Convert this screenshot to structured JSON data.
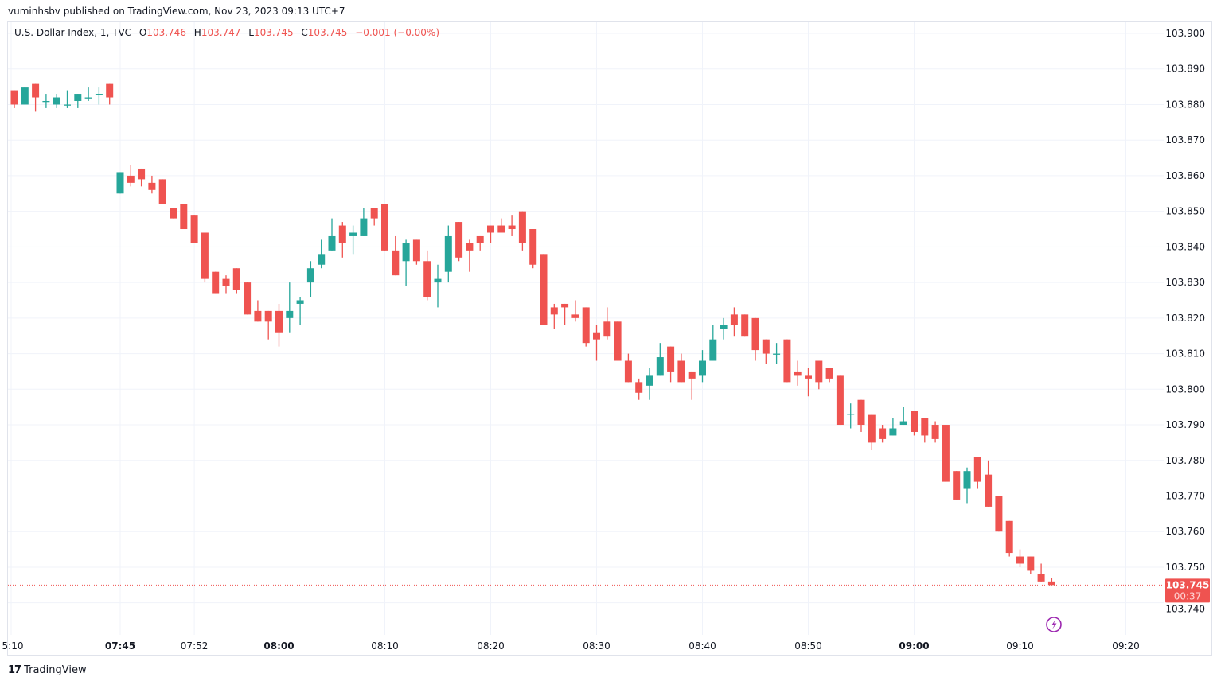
{
  "publisher_line": "vuminhsbv published on TradingView.com, Nov 23, 2023 09:13 UTC+7",
  "legend": {
    "symbol": "U.S. Dollar Index, 1, TVC",
    "o_label": "O",
    "o": "103.746",
    "h_label": "H",
    "h": "103.747",
    "l_label": "L",
    "l": "103.745",
    "c_label": "C",
    "c": "103.745",
    "change": "−0.001 (−0.00%)"
  },
  "last_price": {
    "price": "103.745",
    "countdown": "00:37"
  },
  "footer": {
    "brand": "TradingView",
    "logo": "17"
  },
  "colors": {
    "up": "#26a69a",
    "down": "#ef5350",
    "grid": "#f0f3fa",
    "lightning": "#9c27b0"
  },
  "chart_data": {
    "type": "candlestick",
    "title": "U.S. Dollar Index, 1, TVC",
    "interval_minutes": 1,
    "start_time": "07:35",
    "ylim": [
      103.74,
      103.9
    ],
    "y_ticks": [
      "103.900",
      "103.890",
      "103.880",
      "103.870",
      "103.860",
      "103.850",
      "103.840",
      "103.830",
      "103.820",
      "103.810",
      "103.800",
      "103.790",
      "103.780",
      "103.770",
      "103.760",
      "103.750",
      "103.740"
    ],
    "x_ticks": [
      {
        "label": "5:10",
        "minute": -0.3,
        "bold": false
      },
      {
        "label": "07:45",
        "minute": 10,
        "bold": true
      },
      {
        "label": "07:52",
        "minute": 17,
        "bold": false
      },
      {
        "label": "08:00",
        "minute": 25,
        "bold": true
      },
      {
        "label": "08:10",
        "minute": 35,
        "bold": false
      },
      {
        "label": "08:20",
        "minute": 45,
        "bold": false
      },
      {
        "label": "08:30",
        "minute": 55,
        "bold": false
      },
      {
        "label": "08:40",
        "minute": 65,
        "bold": false
      },
      {
        "label": "08:50",
        "minute": 75,
        "bold": false
      },
      {
        "label": "09:00",
        "minute": 85,
        "bold": true
      },
      {
        "label": "09:10",
        "minute": 95,
        "bold": false
      },
      {
        "label": "09:20",
        "minute": 105,
        "bold": false
      }
    ],
    "ohlc": [
      [
        103.884,
        103.884,
        103.879,
        103.88
      ],
      [
        103.88,
        103.885,
        103.88,
        103.885
      ],
      [
        103.886,
        103.886,
        103.878,
        103.882
      ],
      [
        103.881,
        103.883,
        103.879,
        103.881
      ],
      [
        103.88,
        103.883,
        103.879,
        103.882
      ],
      [
        103.88,
        103.884,
        103.879,
        103.88
      ],
      [
        103.881,
        103.883,
        103.879,
        103.883
      ],
      [
        103.882,
        103.885,
        103.881,
        103.882
      ],
      [
        103.883,
        103.885,
        103.88,
        103.883
      ],
      [
        103.886,
        103.886,
        103.88,
        103.882
      ],
      [
        103.855,
        103.861,
        103.855,
        103.861
      ],
      [
        103.86,
        103.863,
        103.857,
        103.858
      ],
      [
        103.862,
        103.862,
        103.857,
        103.859
      ],
      [
        103.858,
        103.86,
        103.855,
        103.856
      ],
      [
        103.859,
        103.859,
        103.852,
        103.852
      ],
      [
        103.851,
        103.851,
        103.848,
        103.848
      ],
      [
        103.852,
        103.852,
        103.845,
        103.845
      ],
      [
        103.849,
        103.849,
        103.841,
        103.841
      ],
      [
        103.844,
        103.844,
        103.83,
        103.831
      ],
      [
        103.833,
        103.833,
        103.827,
        103.827
      ],
      [
        103.831,
        103.832,
        103.827,
        103.829
      ],
      [
        103.834,
        103.834,
        103.827,
        103.828
      ],
      [
        103.83,
        103.83,
        103.821,
        103.821
      ],
      [
        103.822,
        103.825,
        103.819,
        103.819
      ],
      [
        103.822,
        103.822,
        103.814,
        103.819
      ],
      [
        103.822,
        103.824,
        103.812,
        103.816
      ],
      [
        103.82,
        103.83,
        103.816,
        103.822
      ],
      [
        103.824,
        103.826,
        103.818,
        103.825
      ],
      [
        103.83,
        103.836,
        103.826,
        103.834
      ],
      [
        103.835,
        103.842,
        103.834,
        103.838
      ],
      [
        103.839,
        103.848,
        103.839,
        103.843
      ],
      [
        103.846,
        103.847,
        103.837,
        103.841
      ],
      [
        103.843,
        103.846,
        103.838,
        103.844
      ],
      [
        103.843,
        103.851,
        103.843,
        103.848
      ],
      [
        103.851,
        103.851,
        103.846,
        103.848
      ],
      [
        103.852,
        103.852,
        103.839,
        103.839
      ],
      [
        103.839,
        103.843,
        103.832,
        103.832
      ],
      [
        103.836,
        103.842,
        103.829,
        103.841
      ],
      [
        103.842,
        103.842,
        103.835,
        103.836
      ],
      [
        103.836,
        103.839,
        103.825,
        103.826
      ],
      [
        103.83,
        103.835,
        103.823,
        103.831
      ],
      [
        103.833,
        103.846,
        103.83,
        103.843
      ],
      [
        103.847,
        103.847,
        103.836,
        103.837
      ],
      [
        103.841,
        103.842,
        103.833,
        103.839
      ],
      [
        103.843,
        103.843,
        103.839,
        103.841
      ],
      [
        103.846,
        103.846,
        103.841,
        103.844
      ],
      [
        103.846,
        103.848,
        103.844,
        103.844
      ],
      [
        103.846,
        103.849,
        103.843,
        103.845
      ],
      [
        103.85,
        103.85,
        103.839,
        103.841
      ],
      [
        103.845,
        103.845,
        103.834,
        103.835
      ],
      [
        103.838,
        103.838,
        103.818,
        103.818
      ],
      [
        103.823,
        103.824,
        103.817,
        103.821
      ],
      [
        103.824,
        103.824,
        103.818,
        103.823
      ],
      [
        103.821,
        103.825,
        103.819,
        103.82
      ],
      [
        103.823,
        103.823,
        103.812,
        103.813
      ],
      [
        103.816,
        103.818,
        103.808,
        103.814
      ],
      [
        103.819,
        103.823,
        103.814,
        103.815
      ],
      [
        103.819,
        103.819,
        103.808,
        103.808
      ],
      [
        103.808,
        103.81,
        103.802,
        103.802
      ],
      [
        103.802,
        103.803,
        103.797,
        103.799
      ],
      [
        103.801,
        103.806,
        103.797,
        103.804
      ],
      [
        103.804,
        103.813,
        103.804,
        103.809
      ],
      [
        103.812,
        103.812,
        103.802,
        103.805
      ],
      [
        103.808,
        103.81,
        103.802,
        103.802
      ],
      [
        103.805,
        103.805,
        103.797,
        103.803
      ],
      [
        103.804,
        103.811,
        103.802,
        103.808
      ],
      [
        103.808,
        103.818,
        103.808,
        103.814
      ],
      [
        103.817,
        103.82,
        103.814,
        103.818
      ],
      [
        103.821,
        103.823,
        103.815,
        103.818
      ],
      [
        103.821,
        103.821,
        103.815,
        103.815
      ],
      [
        103.82,
        103.82,
        103.808,
        103.811
      ],
      [
        103.814,
        103.814,
        103.807,
        103.81
      ],
      [
        103.81,
        103.813,
        103.807,
        103.81
      ],
      [
        103.814,
        103.814,
        103.802,
        103.802
      ],
      [
        103.805,
        103.808,
        103.801,
        103.804
      ],
      [
        103.804,
        103.806,
        103.798,
        103.803
      ],
      [
        103.808,
        103.808,
        103.8,
        103.802
      ],
      [
        103.806,
        103.806,
        103.802,
        103.803
      ],
      [
        103.804,
        103.804,
        103.79,
        103.79
      ],
      [
        103.793,
        103.796,
        103.789,
        103.793
      ],
      [
        103.797,
        103.797,
        103.788,
        103.79
      ],
      [
        103.793,
        103.793,
        103.783,
        103.785
      ],
      [
        103.789,
        103.79,
        103.785,
        103.786
      ],
      [
        103.787,
        103.792,
        103.787,
        103.789
      ],
      [
        103.79,
        103.795,
        103.79,
        103.791
      ],
      [
        103.794,
        103.794,
        103.787,
        103.788
      ],
      [
        103.792,
        103.792,
        103.785,
        103.787
      ],
      [
        103.79,
        103.791,
        103.785,
        103.786
      ],
      [
        103.79,
        103.79,
        103.774,
        103.774
      ],
      [
        103.777,
        103.777,
        103.769,
        103.769
      ],
      [
        103.772,
        103.778,
        103.768,
        103.777
      ],
      [
        103.781,
        103.781,
        103.772,
        103.774
      ],
      [
        103.776,
        103.78,
        103.767,
        103.767
      ],
      [
        103.77,
        103.77,
        103.76,
        103.76
      ],
      [
        103.763,
        103.763,
        103.753,
        103.754
      ],
      [
        103.753,
        103.755,
        103.75,
        103.751
      ],
      [
        103.753,
        103.753,
        103.748,
        103.749
      ],
      [
        103.748,
        103.751,
        103.746,
        103.746
      ],
      [
        103.746,
        103.747,
        103.745,
        103.745
      ]
    ]
  }
}
